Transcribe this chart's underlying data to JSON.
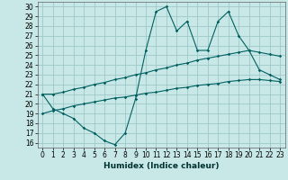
{
  "xlabel": "Humidex (Indice chaleur)",
  "background_color": "#c8e8e8",
  "grid_color": "#a0c8c8",
  "line_color": "#006060",
  "x_values": [
    0,
    1,
    2,
    3,
    4,
    5,
    6,
    7,
    8,
    9,
    10,
    11,
    12,
    13,
    14,
    15,
    16,
    17,
    18,
    19,
    20,
    21,
    22,
    23
  ],
  "line1": [
    21.0,
    19.5,
    19.0,
    18.5,
    17.5,
    17.0,
    16.2,
    15.8,
    17.0,
    20.5,
    25.5,
    29.5,
    30.0,
    27.5,
    28.5,
    25.5,
    25.5,
    28.5,
    29.5,
    27.0,
    25.5,
    23.5,
    23.0,
    22.5
  ],
  "line2": [
    21.0,
    21.0,
    21.2,
    21.5,
    21.7,
    22.0,
    22.2,
    22.5,
    22.7,
    23.0,
    23.2,
    23.5,
    23.7,
    24.0,
    24.2,
    24.5,
    24.7,
    24.9,
    25.1,
    25.3,
    25.5,
    25.3,
    25.1,
    24.9
  ],
  "line3": [
    19.0,
    19.3,
    19.5,
    19.8,
    20.0,
    20.2,
    20.4,
    20.6,
    20.7,
    20.9,
    21.1,
    21.2,
    21.4,
    21.6,
    21.7,
    21.9,
    22.0,
    22.1,
    22.3,
    22.4,
    22.5,
    22.5,
    22.4,
    22.3
  ],
  "ylim": [
    15.5,
    30.5
  ],
  "xlim": [
    -0.5,
    23.5
  ],
  "yticks": [
    16,
    17,
    18,
    19,
    20,
    21,
    22,
    23,
    24,
    25,
    26,
    27,
    28,
    29,
    30
  ],
  "xticks": [
    0,
    1,
    2,
    3,
    4,
    5,
    6,
    7,
    8,
    9,
    10,
    11,
    12,
    13,
    14,
    15,
    16,
    17,
    18,
    19,
    20,
    21,
    22,
    23
  ],
  "tick_fontsize": 5.5,
  "xlabel_fontsize": 6.5
}
